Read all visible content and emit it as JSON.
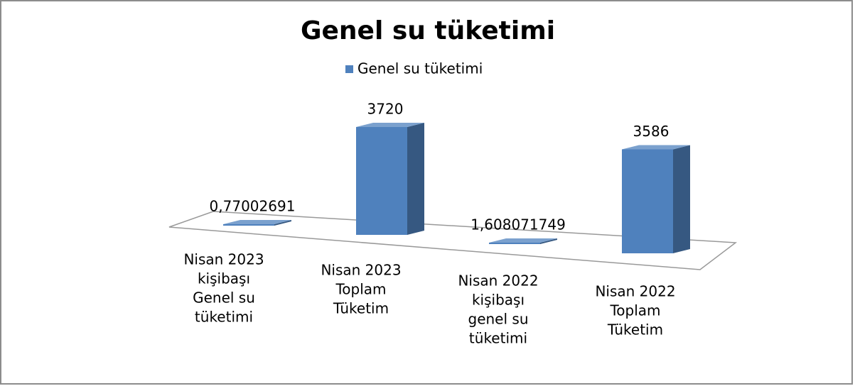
{
  "chart_data": {
    "type": "bar3d",
    "title": "Genel su tüketimi",
    "categories": [
      [
        "Nisan 2023",
        "kişibaşı",
        "Genel su",
        "tüketimi"
      ],
      [
        "Nisan 2023",
        "Toplam",
        "Tüketim"
      ],
      [
        "Nisan 2022",
        "kişibaşı",
        "genel su",
        "tüketimi"
      ],
      [
        "Nisan 2022",
        "Toplam",
        "Tüketim"
      ]
    ],
    "series": [
      {
        "name": "Genel su tüketimi",
        "color": "#4f81bd",
        "values": [
          0.77002691,
          3720,
          1.608071749,
          3586
        ],
        "value_labels": [
          "0,77002691",
          "3720",
          "1,608071749",
          "3586"
        ]
      }
    ],
    "legend": "top"
  }
}
